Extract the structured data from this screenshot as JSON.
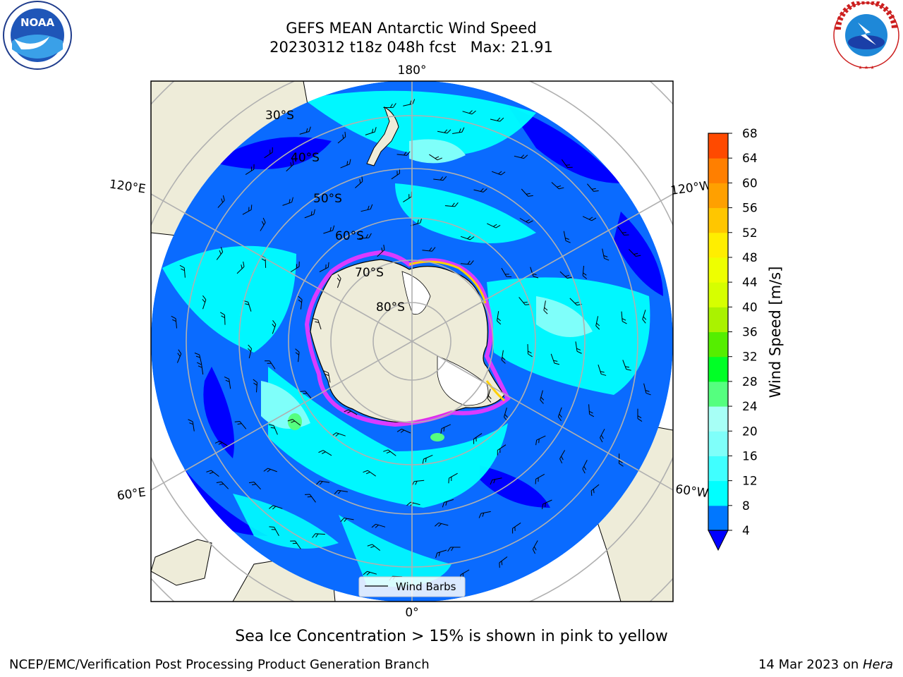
{
  "header": {
    "title_line1": "GEFS MEAN Antarctic Wind Speed",
    "title_line2": "20230312 t18z 048h fcst   Max: 21.91"
  },
  "logos": {
    "noaa_text": "NOAA",
    "nws_text": "NATIONAL WEATHER SERVICE"
  },
  "map": {
    "projection": "south-polar-stereographic",
    "lon_labels": {
      "top": "180°",
      "upper_left": "120°E",
      "upper_right": "120°W",
      "lower_left": "60°E",
      "lower_right": "60°W",
      "bottom": "0°"
    },
    "lat_labels": [
      "30°S",
      "40°S",
      "50°S",
      "60°S",
      "70°S",
      "80°S"
    ],
    "legend_label": "Wind Barbs",
    "colors": {
      "land": "#eeecd9",
      "ocean_blue": "#0a6bff",
      "dark_blue": "#0000ff",
      "cyan": "#00ffff",
      "light_cyan": "#5cf9ff",
      "sea_ice_pink": "#ff33ff",
      "sea_ice_yellow": "#ffd000"
    }
  },
  "colorbar": {
    "label": "Wind Speed [m/s]",
    "ticks": [
      "4",
      "8",
      "12",
      "16",
      "20",
      "24",
      "28",
      "32",
      "36",
      "40",
      "44",
      "48",
      "52",
      "56",
      "60",
      "64",
      "68"
    ],
    "colors": [
      "#0077ff",
      "#00ffff",
      "#40ffff",
      "#7ffffa",
      "#a7fff6",
      "#55ff7f",
      "#00ff26",
      "#55ee00",
      "#aaf200",
      "#d6ff00",
      "#eeff00",
      "#ffee00",
      "#ffc600",
      "#ffa000",
      "#ff7f00",
      "#ff4a00",
      "#ff0000"
    ],
    "under_color": "#0000ff"
  },
  "caption": "Sea Ice Concentration > 15% is shown in pink to yellow",
  "footer": {
    "left": "NCEP/EMC/Verification Post Processing Product Generation Branch",
    "right_date": "14 Mar 2023 on ",
    "right_machine": "Hera"
  }
}
